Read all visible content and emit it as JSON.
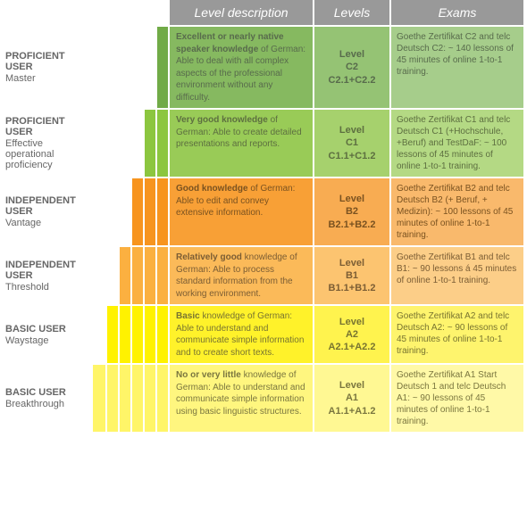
{
  "header": {
    "bg": "#999999",
    "desc": "Level description",
    "levels": "Levels",
    "exams": "Exams"
  },
  "rows": [
    {
      "label_main": "PROFICIENT USER",
      "label_sub": "Master",
      "steps": [
        "#ffffff",
        "#ffffff",
        "#ffffff",
        "#ffffff",
        "#ffffff",
        "#71ab47"
      ],
      "desc_bg": "#86b960",
      "desc_color": "#586b4c",
      "desc_bold": "Excellent or nearly native speaker knowledge",
      "desc_rest": " of German: Able to deal with all complex aspects of the professional environment without any difficulty.",
      "level_bg": "#95c374",
      "level_color": "#586b4c",
      "level1": "Level",
      "level2": "C2",
      "level3": "C2.1+C2.2",
      "exams_bg": "#a6cd8b",
      "exams_color": "#586b4c",
      "exams": "Goethe Zertifikat C2 and telc Deutsch C2: ~ 140 lessons of 45 minutes of online 1-to-1 training."
    },
    {
      "label_main": "PROFICIENT USER",
      "label_sub": "Effective operational proficiency",
      "steps": [
        "#ffffff",
        "#ffffff",
        "#ffffff",
        "#ffffff",
        "#8cc63f",
        "#8cc63f"
      ],
      "desc_bg": "#99cb57",
      "desc_color": "#5d6f40",
      "desc_bold": "Very good knowledge",
      "desc_rest": " of German: Able to create detailed presentations and reports.",
      "level_bg": "#a6d16d",
      "level_color": "#5d6f40",
      "level1": "Level",
      "level2": "C1",
      "level3": "C1.1+C1.2",
      "exams_bg": "#b4d984",
      "exams_color": "#5d6f40",
      "exams": "Goethe Zertifikat C1 and telc Deutsch C1 (+Hochschule, +Beruf) and TestDaF: ~ 100 lessons of 45 minutes of online 1-to-1 training."
    },
    {
      "label_main": "INDEPENDENT USER",
      "label_sub": "Vantage",
      "steps": [
        "#ffffff",
        "#ffffff",
        "#ffffff",
        "#f7941e",
        "#f7941e",
        "#f7941e"
      ],
      "desc_bg": "#f8a036",
      "desc_color": "#7a5220",
      "desc_bold": "Good knowledge",
      "desc_rest": " of German: Able to edit and convey extensive information.",
      "level_bg": "#f8ac52",
      "level_color": "#7a5220",
      "level1": "Level",
      "level2": "B2",
      "level3": "B2.1+B2.2",
      "exams_bg": "#f9b96c",
      "exams_color": "#7a5220",
      "exams": "Goethe Zertifikat B2 and telc Deutsch B2 (+ Beruf, + Medizin): ~ 100 lessons of 45 minutes of online 1-to-1 training."
    },
    {
      "label_main": "INDEPENDENT USER",
      "label_sub": "Threshold",
      "steps": [
        "#ffffff",
        "#ffffff",
        "#fbb040",
        "#fbb040",
        "#fbb040",
        "#fbb040"
      ],
      "desc_bg": "#fbba59",
      "desc_color": "#7b5d34",
      "desc_bold": "Relatively good",
      "desc_rest": " knowledge of German: Able to process standard information from the working environment.",
      "level_bg": "#fcc470",
      "level_color": "#7b5d34",
      "level1": "Level",
      "level2": "B1",
      "level3": "B1.1+B1.2",
      "exams_bg": "#fcce88",
      "exams_color": "#7b5d34",
      "exams": "Goethe Zertifikat B1 and telc B1:\n~ 90 lessons á 45 minutes of online 1-to-1 training."
    },
    {
      "label_main": "BASIC USER",
      "label_sub": "Waystage",
      "steps": [
        "#ffffff",
        "#fff200",
        "#fff200",
        "#fff200",
        "#fff200",
        "#fff200"
      ],
      "desc_bg": "#fff22a",
      "desc_color": "#787430",
      "desc_bold": "Basic",
      "desc_rest": " knowledge of German:\nAble to understand and communicate simple information and to create short texts.",
      "level_bg": "#fff34e",
      "level_color": "#787430",
      "level1": "Level",
      "level2": "A2",
      "level3": "A2.1+A2.2",
      "exams_bg": "#fef46d",
      "exams_color": "#787430",
      "exams": "Goethe Zertifikat A2 and telc Deutsch A2: ~ 90 lessons of 45 minutes of online 1-to-1 training."
    },
    {
      "label_main": "BASIC USER",
      "label_sub": "Breakthrough",
      "steps": [
        "#fff568",
        "#fff568",
        "#fff568",
        "#fff568",
        "#fff568",
        "#fff568"
      ],
      "desc_bg": "#fff67f",
      "desc_color": "#7a763f",
      "desc_bold": "No or very little",
      "desc_rest": " knowledge of German: Able to understand and communicate simple information using basic linguistic structures.",
      "level_bg": "#fff893",
      "level_color": "#7a763f",
      "level1": "Level",
      "level2": "A1",
      "level3": "A1.1+A1.2",
      "exams_bg": "#fff9a7",
      "exams_color": "#7a763f",
      "exams": "Goethe Zertifikat A1 Start Deutsch 1 and telc Deutsch A1: ~ 90 lessons of 45 minutes of online 1-to-1 training."
    }
  ]
}
